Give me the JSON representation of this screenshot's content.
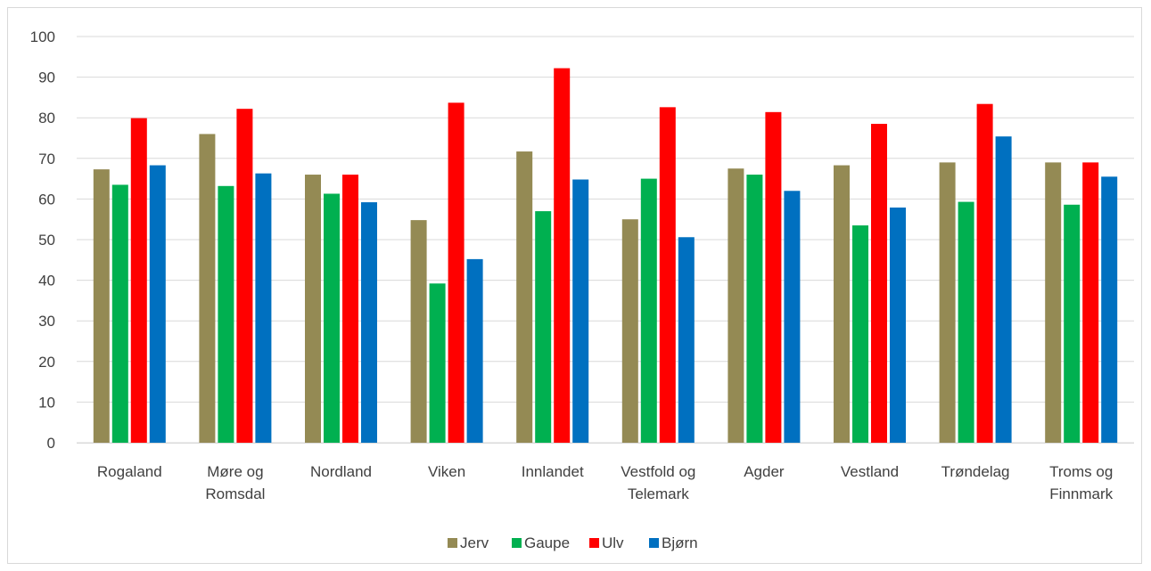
{
  "chart_data": {
    "type": "bar",
    "title": "",
    "xlabel": "",
    "ylabel": "",
    "ylim": [
      0,
      100
    ],
    "yticks": [
      "0",
      "10",
      "20",
      "30",
      "40",
      "50",
      "60",
      "70",
      "80",
      "90",
      "100"
    ],
    "grid": true,
    "legend": "bottom",
    "categories": [
      [
        "Rogaland"
      ],
      [
        "Møre og",
        "Romsdal"
      ],
      [
        "Nordland"
      ],
      [
        "Viken"
      ],
      [
        "Innlandet"
      ],
      [
        "Vestfold og",
        "Telemark"
      ],
      [
        "Agder"
      ],
      [
        "Vestland"
      ],
      [
        "Trøndelag"
      ],
      [
        "Troms og",
        "Finnmark"
      ]
    ],
    "series": [
      {
        "name": "Jerv",
        "color": "#948a54",
        "values": [
          67.3,
          76,
          66,
          54.8,
          71.7,
          55,
          67.5,
          68.3,
          69,
          69
        ]
      },
      {
        "name": "Gaupe",
        "color": "#00b050",
        "values": [
          63.5,
          63.2,
          61.3,
          39.2,
          57,
          65,
          66,
          53.5,
          59.3,
          58.6
        ]
      },
      {
        "name": "Ulv",
        "color": "#ff0000",
        "values": [
          79.9,
          82.2,
          66,
          83.7,
          92.2,
          82.6,
          81.4,
          78.5,
          83.4,
          69
        ]
      },
      {
        "name": "Bjørn",
        "color": "#0070c0",
        "values": [
          68.3,
          66.3,
          59.2,
          45.2,
          64.8,
          50.6,
          62,
          57.9,
          75.4,
          65.5
        ]
      }
    ]
  }
}
